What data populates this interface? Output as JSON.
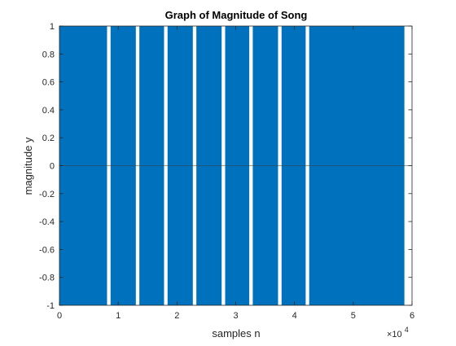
{
  "chart_data": {
    "type": "area",
    "title": "Graph of Magnitude of Song",
    "xlabel": "samples n",
    "ylabel": "magnitude y",
    "xlim": [
      0,
      6
    ],
    "ylim": [
      -1,
      1
    ],
    "x_exponent_label": {
      "base": "×10",
      "exponent": "4"
    },
    "xticks": [
      {
        "value": 0,
        "label": "0"
      },
      {
        "value": 1,
        "label": "1"
      },
      {
        "value": 2,
        "label": "2"
      },
      {
        "value": 3,
        "label": "3"
      },
      {
        "value": 4,
        "label": "4"
      },
      {
        "value": 5,
        "label": "5"
      },
      {
        "value": 6,
        "label": "6"
      }
    ],
    "yticks": [
      {
        "value": -1,
        "label": "-1"
      },
      {
        "value": -0.8,
        "label": "-0.8"
      },
      {
        "value": -0.6,
        "label": "-0.6"
      },
      {
        "value": -0.4,
        "label": "-0.4"
      },
      {
        "value": -0.2,
        "label": "-0.2"
      },
      {
        "value": 0,
        "label": "0"
      },
      {
        "value": 0.2,
        "label": "0.2"
      },
      {
        "value": 0.4,
        "label": "0.4"
      },
      {
        "value": 0.6,
        "label": "0.6"
      },
      {
        "value": 0.8,
        "label": "0.8"
      },
      {
        "value": 1,
        "label": "1"
      }
    ],
    "grid": false,
    "series": [
      {
        "color": "#0072BD",
        "segments": [
          {
            "x_start": 0.0,
            "x_end": 0.81,
            "y_min": -1,
            "y_max": 1
          },
          {
            "x_start": 0.87,
            "x_end": 1.3,
            "y_min": -1,
            "y_max": 1
          },
          {
            "x_start": 1.36,
            "x_end": 1.78,
            "y_min": -1,
            "y_max": 1
          },
          {
            "x_start": 1.84,
            "x_end": 2.27,
            "y_min": -1,
            "y_max": 1
          },
          {
            "x_start": 2.33,
            "x_end": 2.76,
            "y_min": -1,
            "y_max": 1
          },
          {
            "x_start": 2.82,
            "x_end": 3.23,
            "y_min": -1,
            "y_max": 1
          },
          {
            "x_start": 3.29,
            "x_end": 3.72,
            "y_min": -1,
            "y_max": 1
          },
          {
            "x_start": 3.78,
            "x_end": 4.19,
            "y_min": -1,
            "y_max": 1
          },
          {
            "x_start": 4.25,
            "x_end": 5.87,
            "y_min": -1,
            "y_max": 1
          }
        ]
      }
    ]
  }
}
